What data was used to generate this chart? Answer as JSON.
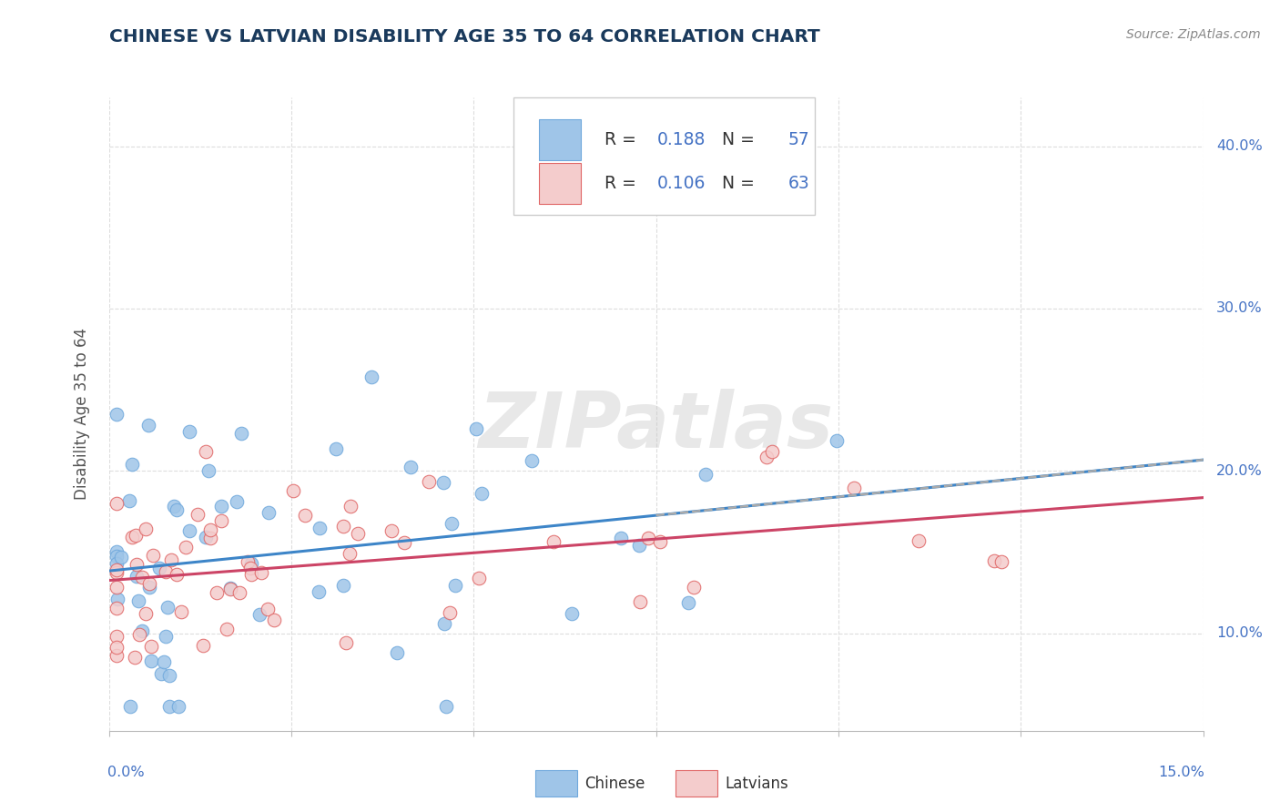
{
  "title": "CHINESE VS LATVIAN DISABILITY AGE 35 TO 64 CORRELATION CHART",
  "source_text": "Source: ZipAtlas.com",
  "ylabel": "Disability Age 35 to 64",
  "xlim": [
    0.0,
    0.15
  ],
  "ylim": [
    0.04,
    0.43
  ],
  "chinese_color": "#9fc5e8",
  "chinese_edge_color": "#6fa8dc",
  "latvian_color": "#f4cccc",
  "latvian_edge_color": "#e06666",
  "chinese_line_color": "#3d85c8",
  "latvian_line_color": "#cc4466",
  "dashed_line_color": "#aaaaaa",
  "chinese_R": 0.188,
  "chinese_N": 57,
  "latvian_R": 0.106,
  "latvian_N": 63,
  "legend_text_color": "#333333",
  "legend_value_color": "#4472c4",
  "legend_box_edge": "#cccccc",
  "watermark_text": "ZIPatlas",
  "watermark_color": "#cccccc",
  "grid_color": "#dddddd",
  "bg_color": "#ffffff",
  "title_color": "#1a3a5c",
  "source_color": "#888888",
  "ylabel_color": "#555555",
  "tick_color": "#4472c4",
  "yticks": [
    0.1,
    0.2,
    0.3,
    0.4
  ],
  "ytick_labels": [
    "10.0%",
    "20.0%",
    "30.0%",
    "40.0%"
  ],
  "bottom_labels": [
    "Chinese",
    "Latvians"
  ]
}
